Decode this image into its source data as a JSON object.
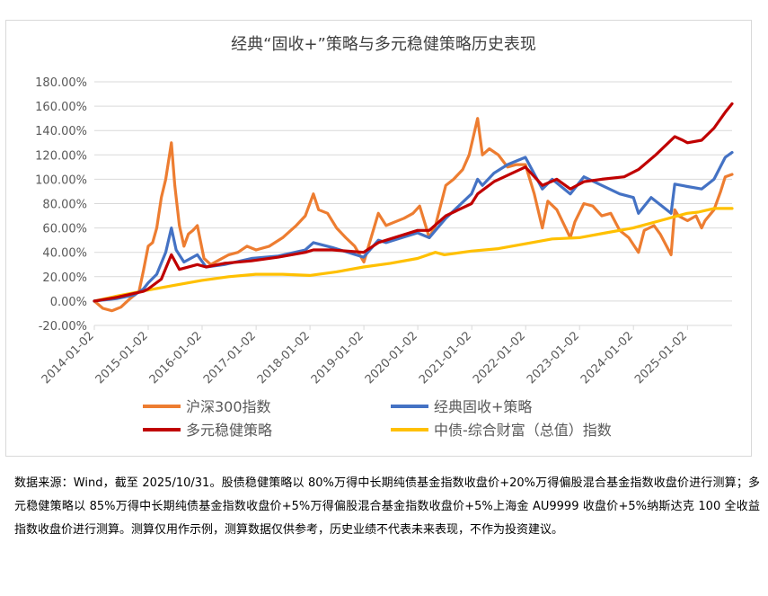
{
  "chart_data": {
    "type": "line",
    "title": "经典“固收+”策略与多元稳健策略历史表现",
    "y_ticks": [
      "180.00%",
      "160.00%",
      "140.00%",
      "120.00%",
      "100.00%",
      "80.00%",
      "60.00%",
      "40.00%",
      "20.00%",
      "0.00%",
      "-20.00%"
    ],
    "ylim": [
      -20,
      180
    ],
    "x_ticks": [
      "2014-01-02",
      "2015-01-02",
      "2016-01-02",
      "2017-01-02",
      "2018-01-02",
      "2019-01-02",
      "2020-01-02",
      "2021-01-02",
      "2022-01-02",
      "2023-01-02",
      "2024-01-02",
      "2025-01-02"
    ],
    "x_range": [
      "2014-01-02",
      "2025-10-31"
    ],
    "grid": "horizontal",
    "legend_position": "bottom",
    "series": [
      {
        "name": "沪深300指数",
        "color": "#ED7D31",
        "points": [
          [
            "2014-01-02",
            0
          ],
          [
            "2014-03-01",
            -6
          ],
          [
            "2014-05-01",
            -8
          ],
          [
            "2014-07-01",
            -5
          ],
          [
            "2014-09-01",
            2
          ],
          [
            "2014-11-01",
            8
          ],
          [
            "2014-12-01",
            25
          ],
          [
            "2015-01-02",
            45
          ],
          [
            "2015-02-01",
            48
          ],
          [
            "2015-03-01",
            60
          ],
          [
            "2015-04-01",
            85
          ],
          [
            "2015-05-01",
            100
          ],
          [
            "2015-06-08",
            130
          ],
          [
            "2015-07-01",
            95
          ],
          [
            "2015-08-01",
            62
          ],
          [
            "2015-09-01",
            45
          ],
          [
            "2015-10-01",
            55
          ],
          [
            "2015-11-01",
            58
          ],
          [
            "2015-12-01",
            62
          ],
          [
            "2016-01-15",
            35
          ],
          [
            "2016-03-01",
            30
          ],
          [
            "2016-05-01",
            34
          ],
          [
            "2016-07-01",
            38
          ],
          [
            "2016-09-01",
            40
          ],
          [
            "2016-11-01",
            45
          ],
          [
            "2017-01-02",
            42
          ],
          [
            "2017-04-01",
            45
          ],
          [
            "2017-07-01",
            52
          ],
          [
            "2017-10-01",
            62
          ],
          [
            "2017-12-01",
            70
          ],
          [
            "2018-01-25",
            88
          ],
          [
            "2018-03-01",
            75
          ],
          [
            "2018-05-01",
            72
          ],
          [
            "2018-07-01",
            60
          ],
          [
            "2018-09-01",
            52
          ],
          [
            "2018-11-01",
            45
          ],
          [
            "2019-01-02",
            32
          ],
          [
            "2019-02-15",
            50
          ],
          [
            "2019-04-10",
            72
          ],
          [
            "2019-06-01",
            62
          ],
          [
            "2019-08-01",
            65
          ],
          [
            "2019-10-01",
            68
          ],
          [
            "2019-12-01",
            72
          ],
          [
            "2020-01-15",
            78
          ],
          [
            "2020-03-20",
            52
          ],
          [
            "2020-05-01",
            62
          ],
          [
            "2020-07-10",
            95
          ],
          [
            "2020-09-01",
            100
          ],
          [
            "2020-11-01",
            108
          ],
          [
            "2020-12-15",
            120
          ],
          [
            "2021-02-10",
            150
          ],
          [
            "2021-03-15",
            120
          ],
          [
            "2021-05-01",
            125
          ],
          [
            "2021-07-01",
            120
          ],
          [
            "2021-09-01",
            110
          ],
          [
            "2021-11-01",
            112
          ],
          [
            "2021-12-31",
            112
          ],
          [
            "2022-03-01",
            88
          ],
          [
            "2022-04-25",
            60
          ],
          [
            "2022-06-01",
            82
          ],
          [
            "2022-08-01",
            75
          ],
          [
            "2022-10-31",
            52
          ],
          [
            "2022-12-01",
            65
          ],
          [
            "2023-01-31",
            80
          ],
          [
            "2023-04-01",
            78
          ],
          [
            "2023-06-01",
            70
          ],
          [
            "2023-08-01",
            72
          ],
          [
            "2023-10-01",
            58
          ],
          [
            "2023-12-01",
            52
          ],
          [
            "2024-02-05",
            40
          ],
          [
            "2024-03-15",
            58
          ],
          [
            "2024-05-20",
            62
          ],
          [
            "2024-07-01",
            55
          ],
          [
            "2024-09-13",
            38
          ],
          [
            "2024-10-08",
            75
          ],
          [
            "2024-11-01",
            70
          ],
          [
            "2025-01-02",
            66
          ],
          [
            "2025-03-01",
            70
          ],
          [
            "2025-04-08",
            60
          ],
          [
            "2025-05-01",
            66
          ],
          [
            "2025-07-01",
            75
          ],
          [
            "2025-08-15",
            90
          ],
          [
            "2025-09-15",
            102
          ],
          [
            "2025-10-31",
            104
          ]
        ]
      },
      {
        "name": "经典固收+策略",
        "color": "#4472C4",
        "points": [
          [
            "2014-01-02",
            0
          ],
          [
            "2014-06-01",
            2
          ],
          [
            "2014-10-01",
            5
          ],
          [
            "2014-12-01",
            10
          ],
          [
            "2015-01-02",
            15
          ],
          [
            "2015-03-01",
            22
          ],
          [
            "2015-05-01",
            40
          ],
          [
            "2015-06-08",
            60
          ],
          [
            "2015-07-10",
            42
          ],
          [
            "2015-09-01",
            32
          ],
          [
            "2015-12-01",
            38
          ],
          [
            "2016-01-29",
            28
          ],
          [
            "2016-06-01",
            30
          ],
          [
            "2016-12-01",
            35
          ],
          [
            "2017-06-01",
            37
          ],
          [
            "2017-12-01",
            42
          ],
          [
            "2018-01-25",
            48
          ],
          [
            "2018-06-01",
            44
          ],
          [
            "2018-12-31",
            36
          ],
          [
            "2019-04-10",
            50
          ],
          [
            "2019-06-01",
            48
          ],
          [
            "2019-12-31",
            56
          ],
          [
            "2020-03-20",
            52
          ],
          [
            "2020-07-10",
            68
          ],
          [
            "2020-12-31",
            88
          ],
          [
            "2021-02-10",
            100
          ],
          [
            "2021-03-15",
            95
          ],
          [
            "2021-06-01",
            105
          ],
          [
            "2021-09-01",
            112
          ],
          [
            "2021-12-31",
            118
          ],
          [
            "2022-04-25",
            92
          ],
          [
            "2022-07-01",
            100
          ],
          [
            "2022-10-31",
            88
          ],
          [
            "2023-01-31",
            102
          ],
          [
            "2023-06-01",
            95
          ],
          [
            "2023-10-01",
            88
          ],
          [
            "2024-01-02",
            85
          ],
          [
            "2024-02-05",
            72
          ],
          [
            "2024-05-01",
            85
          ],
          [
            "2024-09-13",
            72
          ],
          [
            "2024-10-08",
            96
          ],
          [
            "2025-01-02",
            94
          ],
          [
            "2025-04-08",
            92
          ],
          [
            "2025-07-01",
            100
          ],
          [
            "2025-09-15",
            118
          ],
          [
            "2025-10-31",
            122
          ]
        ]
      },
      {
        "name": "多元稳健策略",
        "color": "#C00000",
        "points": [
          [
            "2014-01-02",
            0
          ],
          [
            "2014-06-01",
            3
          ],
          [
            "2014-12-01",
            8
          ],
          [
            "2015-01-02",
            10
          ],
          [
            "2015-04-01",
            18
          ],
          [
            "2015-06-08",
            38
          ],
          [
            "2015-08-01",
            26
          ],
          [
            "2015-12-01",
            30
          ],
          [
            "2016-01-29",
            28
          ],
          [
            "2016-06-01",
            31
          ],
          [
            "2016-12-01",
            33
          ],
          [
            "2017-06-01",
            36
          ],
          [
            "2017-12-01",
            40
          ],
          [
            "2018-01-25",
            42
          ],
          [
            "2018-06-01",
            42
          ],
          [
            "2018-12-31",
            40
          ],
          [
            "2019-04-10",
            48
          ],
          [
            "2019-12-31",
            58
          ],
          [
            "2020-03-20",
            58
          ],
          [
            "2020-07-10",
            70
          ],
          [
            "2020-12-31",
            80
          ],
          [
            "2021-02-10",
            88
          ],
          [
            "2021-06-01",
            98
          ],
          [
            "2021-12-31",
            110
          ],
          [
            "2022-04-25",
            95
          ],
          [
            "2022-08-01",
            100
          ],
          [
            "2022-10-31",
            92
          ],
          [
            "2023-02-01",
            98
          ],
          [
            "2023-06-01",
            100
          ],
          [
            "2023-10-31",
            102
          ],
          [
            "2024-02-05",
            108
          ],
          [
            "2024-06-01",
            120
          ],
          [
            "2024-10-08",
            135
          ],
          [
            "2024-12-01",
            132
          ],
          [
            "2025-01-02",
            130
          ],
          [
            "2025-04-08",
            132
          ],
          [
            "2025-07-01",
            142
          ],
          [
            "2025-09-15",
            155
          ],
          [
            "2025-10-31",
            162
          ]
        ]
      },
      {
        "name": "中债-综合财富（总值）指数",
        "color": "#FFC000",
        "points": [
          [
            "2014-01-02",
            0
          ],
          [
            "2014-06-01",
            4
          ],
          [
            "2014-12-31",
            9
          ],
          [
            "2015-06-30",
            13
          ],
          [
            "2015-12-31",
            17
          ],
          [
            "2016-06-30",
            20
          ],
          [
            "2016-12-31",
            22
          ],
          [
            "2017-06-30",
            22
          ],
          [
            "2017-12-31",
            21
          ],
          [
            "2018-06-30",
            24
          ],
          [
            "2018-12-31",
            28
          ],
          [
            "2019-06-30",
            31
          ],
          [
            "2019-12-31",
            35
          ],
          [
            "2020-04-30",
            40
          ],
          [
            "2020-06-30",
            38
          ],
          [
            "2020-12-31",
            41
          ],
          [
            "2021-06-30",
            43
          ],
          [
            "2021-12-31",
            47
          ],
          [
            "2022-06-30",
            51
          ],
          [
            "2022-12-31",
            52
          ],
          [
            "2023-06-30",
            56
          ],
          [
            "2023-12-31",
            60
          ],
          [
            "2024-06-30",
            66
          ],
          [
            "2024-12-31",
            72
          ],
          [
            "2025-03-15",
            73
          ],
          [
            "2025-06-30",
            76
          ],
          [
            "2025-10-31",
            76
          ]
        ]
      }
    ]
  },
  "note": {
    "text": "数据来源：Wind，截至 2025/10/31。股债稳健策略以 80%万得中长期纯债基金指数收盘价+20%万得偏股混合基金指数收盘价进行测算；多元稳健策略以 85%万得中长期纯债基金指数收盘价+5%万得偏股混合基金指数收盘价+5%上海金 AU9999 收盘价+5%纳斯达克 100 全收益指数收盘价进行测算。测算仅用作示例，测算数据仅供参考，历史业绩不代表未来表现，不作为投资建议。"
  },
  "colors": {
    "grid": "#d9d9d9",
    "text": "#595959",
    "title": "#404040"
  }
}
